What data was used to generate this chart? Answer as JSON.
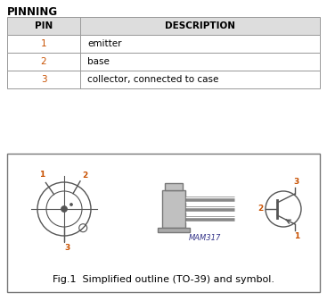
{
  "title": "PINNING",
  "table_headers": [
    "PIN",
    "DESCRIPTION"
  ],
  "table_rows": [
    [
      "1",
      "emitter"
    ],
    [
      "2",
      "base"
    ],
    [
      "3",
      "collector, connected to case"
    ]
  ],
  "fig_caption": "Fig.1  Simplified outline (TO-39) and symbol.",
  "mam_label": "MAM317",
  "bg_color": "#ffffff",
  "pin_color": "#c85000",
  "line_color": "#555555",
  "table_border_color": "#999999",
  "table_header_bg": "#dddddd",
  "fig_box_bg": "#ffffff",
  "fig_box_border": "#777777"
}
